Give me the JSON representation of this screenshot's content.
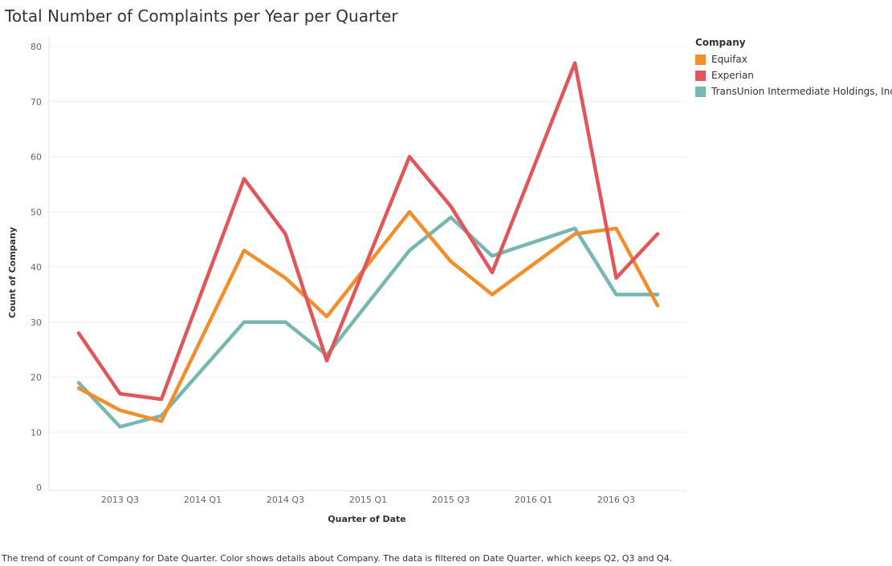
{
  "chart_data": {
    "type": "line",
    "title": "Total Number of Complaints per Year per Quarter",
    "xlabel": "Quarter of Date",
    "ylabel": "Count of Company",
    "x": [
      "2013 Q2",
      "2013 Q3",
      "2013 Q4",
      "2014 Q2",
      "2014 Q3",
      "2014 Q4",
      "2015 Q2",
      "2015 Q3",
      "2015 Q4",
      "2016 Q2",
      "2016 Q3",
      "2016 Q4"
    ],
    "x_tick_labels": [
      "2013 Q3",
      "2014 Q1",
      "2014 Q3",
      "2015 Q1",
      "2015 Q3",
      "2016 Q1",
      "2016 Q3"
    ],
    "y_ticks": [
      0,
      10,
      20,
      30,
      40,
      50,
      60,
      70,
      80
    ],
    "ylim": [
      0,
      80
    ],
    "grid": true,
    "legend_title": "Company",
    "legend_position": "top-right",
    "series": [
      {
        "name": "Equifax",
        "color": "#f28e2b",
        "points": [
          [
            "2013 Q2",
            18
          ],
          [
            "2013 Q3",
            14
          ],
          [
            "2013 Q4",
            12
          ],
          [
            "2014 Q2",
            43
          ],
          [
            "2014 Q3",
            38
          ],
          [
            "2014 Q4",
            31
          ],
          [
            "2015 Q2",
            50
          ],
          [
            "2015 Q3",
            41
          ],
          [
            "2015 Q4",
            35
          ],
          [
            "2016 Q2",
            46
          ],
          [
            "2016 Q3",
            47
          ],
          [
            "2016 Q4",
            33
          ]
        ]
      },
      {
        "name": "Experian",
        "color": "#e15759",
        "points": [
          [
            "2013 Q2",
            28
          ],
          [
            "2013 Q3",
            17
          ],
          [
            "2013 Q4",
            16
          ],
          [
            "2014 Q2",
            56
          ],
          [
            "2014 Q3",
            46
          ],
          [
            "2014 Q4",
            23
          ],
          [
            "2015 Q2",
            60
          ],
          [
            "2015 Q3",
            51
          ],
          [
            "2015 Q4",
            39
          ],
          [
            "2016 Q2",
            77
          ],
          [
            "2016 Q3",
            38
          ],
          [
            "2016 Q4",
            46
          ]
        ]
      },
      {
        "name": "TransUnion Intermediate Holdings, Inc.",
        "color": "#76b7b2",
        "points": [
          [
            "2013 Q2",
            19
          ],
          [
            "2013 Q3",
            11
          ],
          [
            "2013 Q4",
            13
          ],
          [
            "2014 Q2",
            30
          ],
          [
            "2014 Q3",
            30
          ],
          [
            "2014 Q4",
            24
          ],
          [
            "2015 Q2",
            43
          ],
          [
            "2015 Q3",
            49
          ],
          [
            "2015 Q4",
            42
          ],
          [
            "2016 Q2",
            47
          ],
          [
            "2016 Q3",
            35
          ],
          [
            "2016 Q4",
            35
          ]
        ]
      }
    ]
  },
  "caption": "The trend of count of Company for Date Quarter.  Color shows details about Company. The data is filtered on Date Quarter, which keeps Q2, Q3 and Q4."
}
